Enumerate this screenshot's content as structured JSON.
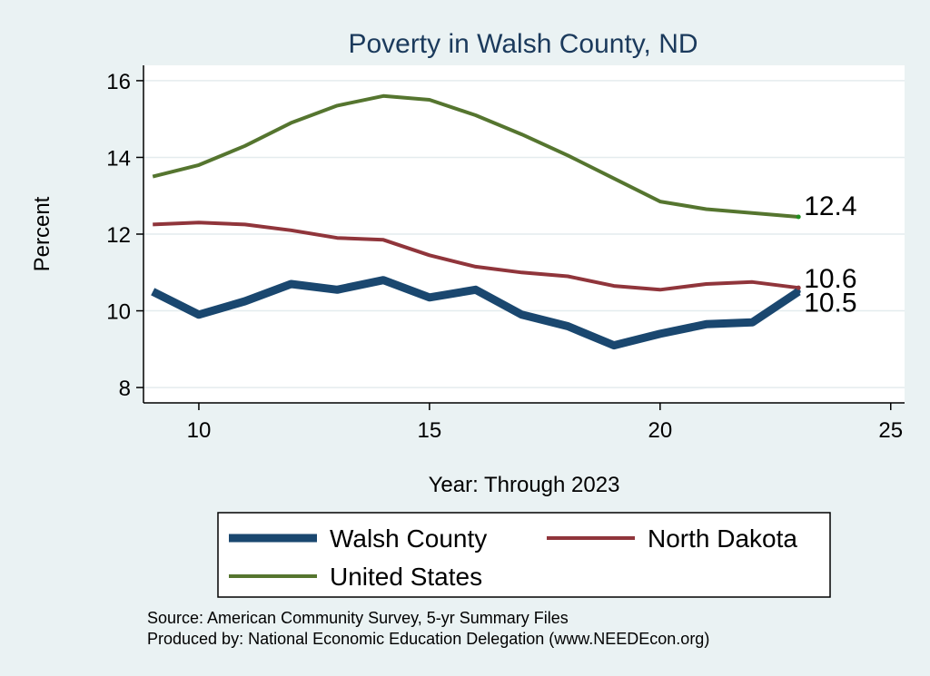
{
  "chart_data": {
    "type": "line",
    "title": "Poverty in Walsh County, ND",
    "xlabel": "Year: Through 2023",
    "ylabel": "Percent",
    "xlim": [
      8.8,
      25.3
    ],
    "ylim": [
      7.6,
      16.4
    ],
    "xticks": [
      10,
      15,
      20,
      25
    ],
    "yticks": [
      8,
      10,
      12,
      14,
      16
    ],
    "grid": true,
    "legend_position": "bottom",
    "x": [
      9,
      10,
      11,
      12,
      13,
      14,
      15,
      16,
      17,
      18,
      19,
      20,
      21,
      22,
      23
    ],
    "series": [
      {
        "name": "Walsh County",
        "color": "#1a476f",
        "line": "thick",
        "values": [
          10.5,
          9.9,
          10.25,
          10.7,
          10.55,
          10.8,
          10.35,
          10.55,
          9.9,
          9.6,
          9.1,
          9.4,
          9.65,
          9.7,
          10.5
        ],
        "end_label": "10.5"
      },
      {
        "name": "North Dakota",
        "color": "#90353b",
        "line": "medium",
        "values": [
          12.25,
          12.3,
          12.25,
          12.1,
          11.9,
          11.85,
          11.45,
          11.15,
          11.0,
          10.9,
          10.65,
          10.55,
          10.7,
          10.75,
          10.6
        ],
        "end_label": "10.6"
      },
      {
        "name": "United States",
        "color": "#55752f",
        "line": "medium",
        "values": [
          13.5,
          13.8,
          14.3,
          14.9,
          15.35,
          15.6,
          15.5,
          15.1,
          14.6,
          14.05,
          13.45,
          12.85,
          12.65,
          12.55,
          12.45
        ],
        "end_label": "12.4"
      }
    ],
    "notes": [
      "Source: American Community Survey, 5-yr Summary Files",
      "Produced by: National Economic Education Delegation (www.NEEDEcon.org)"
    ]
  }
}
